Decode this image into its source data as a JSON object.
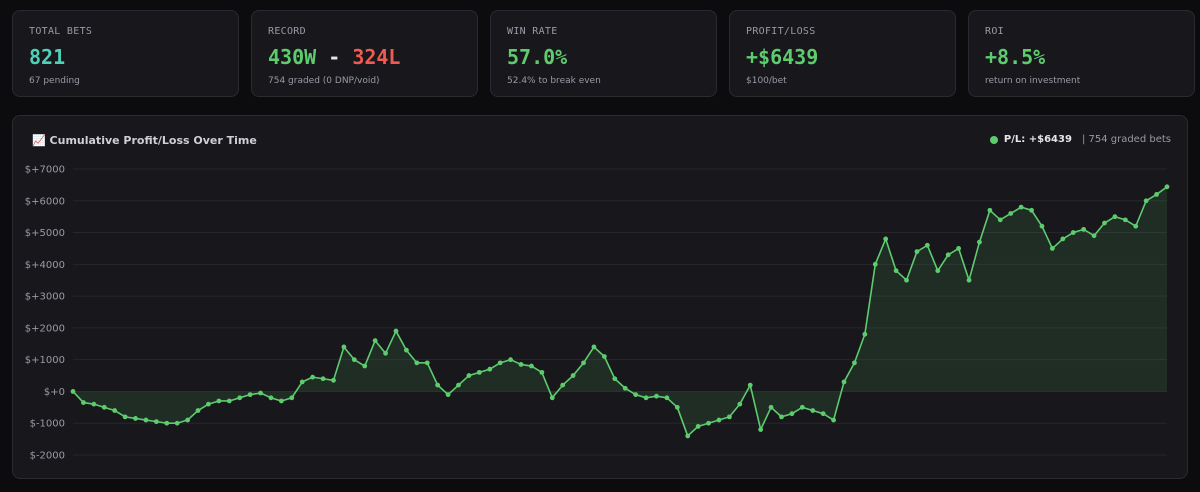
{
  "cards": [
    {
      "label": "TOTAL BETS",
      "value": "821",
      "sub": "67 pending",
      "color": "#4fd1b8"
    },
    {
      "label": "RECORD",
      "wins": "430W",
      "sep": "-",
      "losses": "324L",
      "sub": "754 graded (0 DNP/void)"
    },
    {
      "label": "WIN RATE",
      "value": "57.0%",
      "sub": "52.4% to break even",
      "color": "#5ecc6e"
    },
    {
      "label": "PROFIT/LOSS",
      "value": "+$6439",
      "sub": "$100/bet",
      "color": "#5ecc6e"
    },
    {
      "label": "ROI",
      "value": "+8.5%",
      "sub": "return on investment",
      "color": "#5ecc6e"
    }
  ],
  "chart": {
    "title": "Cumulative Profit/Loss Over Time",
    "title_icon": "📈",
    "legend_pl": "P/L: +$6439",
    "legend_graded": "| 754 graded bets"
  },
  "chart_data": {
    "type": "line",
    "ylabel_ticks": [
      "$+7000",
      "$+6000",
      "$+5000",
      "$+4000",
      "$+3000",
      "$+2000",
      "$+1000",
      "$+0",
      "$-1000",
      "$-2000"
    ],
    "ylim": [
      -2000,
      7000
    ],
    "line_color": "#5ecc6e",
    "fill": true,
    "grid": true,
    "series": [
      {
        "values": [
          0,
          -350,
          -400,
          -500,
          -600,
          -800,
          -850,
          -900,
          -950,
          -1000,
          -1000,
          -900,
          -600,
          -400,
          -300,
          -300,
          -200,
          -100,
          -50,
          -200,
          -300,
          -200,
          300,
          450,
          400,
          350,
          1400,
          1000,
          800,
          1600,
          1200,
          1900,
          1300,
          900,
          900,
          200,
          -100,
          200,
          500,
          600,
          700,
          900,
          1000,
          850,
          800,
          600,
          -200,
          200,
          500,
          900,
          1400,
          1100,
          400,
          100,
          -100,
          -200,
          -150,
          -200,
          -500,
          -1400,
          -1100,
          -1000,
          -900,
          -800,
          -400,
          200,
          -1200,
          -500,
          -800,
          -700,
          -500,
          -600,
          -700,
          -900,
          300,
          900,
          1800,
          4000,
          4800,
          3800,
          3500,
          4400,
          4600,
          3800,
          4300,
          4500,
          3500,
          4700,
          5700,
          5400,
          5600,
          5800,
          5700,
          5200,
          4500,
          4800,
          5000,
          5100,
          4900,
          5300,
          5500,
          5400,
          5200,
          6000,
          6200,
          6439
        ]
      }
    ]
  }
}
